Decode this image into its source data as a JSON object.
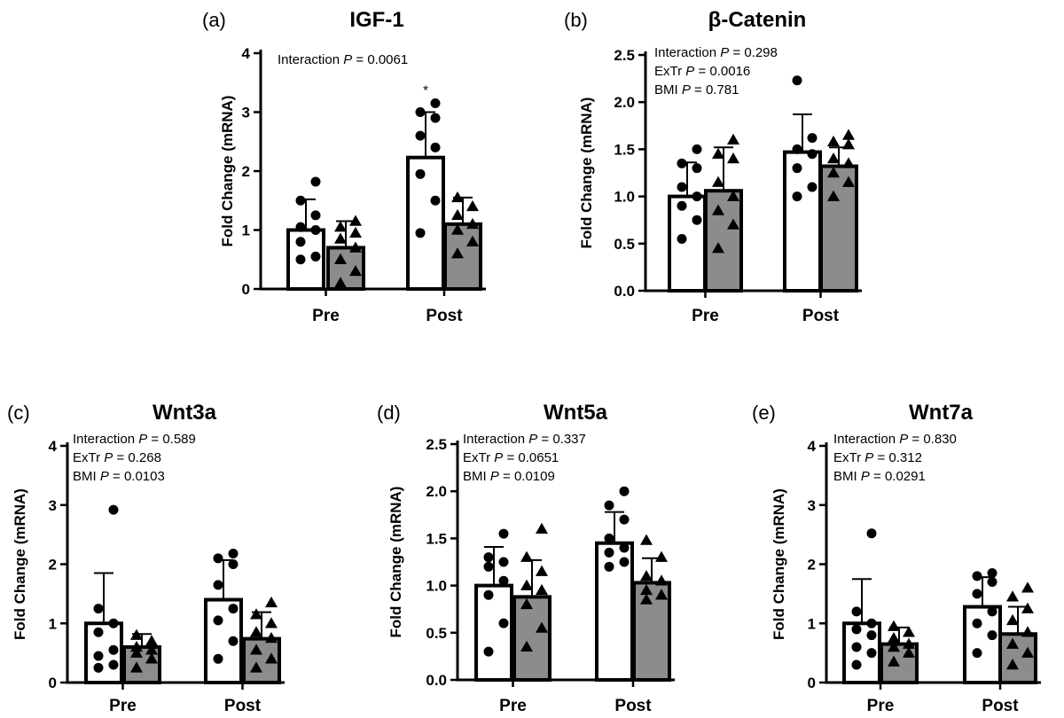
{
  "chart_data": [
    {
      "type": "bar",
      "letter": "(a)",
      "title": "IGF-1",
      "ylabel": "Fold Change (mRNA)",
      "ylim": [
        0,
        4
      ],
      "yticks": [
        "0",
        "1",
        "2",
        "3",
        "4"
      ],
      "categories": [
        "Pre",
        "Post"
      ],
      "annotations": [
        {
          "label": "Interaction ",
          "p_symbol": "P",
          "value": " = 0.0061"
        }
      ],
      "significance": [
        {
          "category": "Post",
          "series": 0,
          "label": "*"
        }
      ],
      "series": [
        {
          "fill": "#ffffff",
          "marker": "circle",
          "values": [
            1.0,
            2.23
          ],
          "errors": [
            0.52,
            0.77
          ],
          "points": [
            [
              0.5,
              0.55,
              0.8,
              1.0,
              1.05,
              1.25,
              1.5,
              1.82
            ],
            [
              0.95,
              1.5,
              1.95,
              2.4,
              2.6,
              2.9,
              3.0,
              3.15
            ]
          ]
        },
        {
          "fill": "#8c8c8c",
          "marker": "triangle",
          "values": [
            0.7,
            1.1
          ],
          "errors": [
            0.45,
            0.45
          ],
          "points": [
            [
              0.1,
              0.3,
              0.5,
              0.7,
              0.85,
              0.95,
              1.05,
              1.15
            ],
            [
              0.6,
              0.8,
              1.0,
              1.1,
              1.25,
              1.4,
              1.55
            ]
          ]
        }
      ]
    },
    {
      "type": "bar",
      "letter": "(b)",
      "title": "β-Catenin",
      "ylabel": "Fold Change (mRNA)",
      "ylim": [
        0,
        2.5
      ],
      "yticks": [
        "0.0",
        "0.5",
        "1.0",
        "1.5",
        "2.0",
        "2.5"
      ],
      "categories": [
        "Pre",
        "Post"
      ],
      "annotations": [
        {
          "label": "Interaction ",
          "p_symbol": "P",
          "value": " = 0.298"
        },
        {
          "label": "ExTr ",
          "p_symbol": "P",
          "value": " = 0.0016"
        },
        {
          "label": "BMI ",
          "p_symbol": "P",
          "value": " = 0.781"
        }
      ],
      "significance": [],
      "series": [
        {
          "fill": "#ffffff",
          "marker": "circle",
          "values": [
            1.0,
            1.47
          ],
          "errors": [
            0.36,
            0.4
          ],
          "points": [
            [
              0.55,
              0.75,
              0.9,
              1.0,
              1.1,
              1.3,
              1.35,
              1.5
            ],
            [
              1.0,
              1.1,
              1.3,
              1.45,
              1.5,
              1.62,
              2.23
            ]
          ]
        },
        {
          "fill": "#8c8c8c",
          "marker": "triangle",
          "values": [
            1.06,
            1.32
          ],
          "errors": [
            0.46,
            0.2
          ],
          "points": [
            [
              0.45,
              0.7,
              0.85,
              1.0,
              1.15,
              1.4,
              1.45,
              1.6
            ],
            [
              1.0,
              1.15,
              1.25,
              1.35,
              1.4,
              1.55,
              1.58,
              1.65
            ]
          ]
        }
      ]
    },
    {
      "type": "bar",
      "letter": "(c)",
      "title": "Wnt3a",
      "ylabel": "Fold Change (mRNA)",
      "ylim": [
        0,
        4
      ],
      "yticks": [
        "0",
        "1",
        "2",
        "3",
        "4"
      ],
      "categories": [
        "Pre",
        "Post"
      ],
      "annotations": [
        {
          "label": "Interaction ",
          "p_symbol": "P",
          "value": " = 0.589"
        },
        {
          "label": "ExTr ",
          "p_symbol": "P",
          "value": " = 0.268"
        },
        {
          "label": "BMI ",
          "p_symbol": "P",
          "value": " = 0.0103"
        }
      ],
      "significance": [],
      "series": [
        {
          "fill": "#ffffff",
          "marker": "circle",
          "values": [
            1.0,
            1.4
          ],
          "errors": [
            0.85,
            0.67
          ],
          "points": [
            [
              0.25,
              0.3,
              0.45,
              0.55,
              0.85,
              1.0,
              1.25,
              2.92
            ],
            [
              0.4,
              0.7,
              1.05,
              1.25,
              1.65,
              2.0,
              2.1,
              2.18
            ]
          ]
        },
        {
          "fill": "#8c8c8c",
          "marker": "triangle",
          "values": [
            0.6,
            0.74
          ],
          "errors": [
            0.22,
            0.45
          ],
          "points": [
            [
              0.25,
              0.4,
              0.5,
              0.55,
              0.6,
              0.7,
              0.8
            ],
            [
              0.25,
              0.4,
              0.55,
              0.75,
              0.85,
              1.0,
              1.15,
              1.35
            ]
          ]
        }
      ]
    },
    {
      "type": "bar",
      "letter": "(d)",
      "title": "Wnt5a",
      "ylabel": "Fold Change (mRNA)",
      "ylim": [
        0,
        2.5
      ],
      "yticks": [
        "0.0",
        "0.5",
        "1.0",
        "1.5",
        "2.0",
        "2.5"
      ],
      "categories": [
        "Pre",
        "Post"
      ],
      "annotations": [
        {
          "label": "Interaction ",
          "p_symbol": "P",
          "value": " = 0.337"
        },
        {
          "label": "ExTr ",
          "p_symbol": "P",
          "value": " = 0.0651"
        },
        {
          "label": "BMI ",
          "p_symbol": "P",
          "value": " = 0.0109"
        }
      ],
      "significance": [],
      "series": [
        {
          "fill": "#ffffff",
          "marker": "circle",
          "values": [
            1.0,
            1.45
          ],
          "errors": [
            0.41,
            0.33
          ],
          "points": [
            [
              0.3,
              0.6,
              0.9,
              1.05,
              1.2,
              1.25,
              1.3,
              1.55
            ],
            [
              1.2,
              1.25,
              1.35,
              1.4,
              1.5,
              1.7,
              1.85,
              2.0
            ]
          ]
        },
        {
          "fill": "#8c8c8c",
          "marker": "triangle",
          "values": [
            0.88,
            1.03
          ],
          "errors": [
            0.39,
            0.26
          ],
          "points": [
            [
              0.35,
              0.55,
              0.8,
              0.95,
              1.0,
              1.15,
              1.3,
              1.6
            ],
            [
              0.85,
              0.9,
              0.95,
              1.05,
              1.1,
              1.3,
              1.48
            ]
          ]
        }
      ]
    },
    {
      "type": "bar",
      "letter": "(e)",
      "title": "Wnt7a",
      "ylabel": "Fold Change (mRNA)",
      "ylim": [
        0,
        4
      ],
      "yticks": [
        "0",
        "1",
        "2",
        "3",
        "4"
      ],
      "categories": [
        "Pre",
        "Post"
      ],
      "annotations": [
        {
          "label": "Interaction ",
          "p_symbol": "P",
          "value": " = 0.830"
        },
        {
          "label": "ExTr ",
          "p_symbol": "P",
          "value": " = 0.312"
        },
        {
          "label": "BMI ",
          "p_symbol": "P",
          "value": " = 0.0291"
        }
      ],
      "significance": [],
      "series": [
        {
          "fill": "#ffffff",
          "marker": "circle",
          "values": [
            1.0,
            1.28
          ],
          "errors": [
            0.75,
            0.5
          ],
          "points": [
            [
              0.3,
              0.5,
              0.6,
              0.8,
              0.9,
              1.0,
              1.2,
              2.52
            ],
            [
              0.5,
              0.8,
              1.0,
              1.2,
              1.5,
              1.7,
              1.8,
              1.85
            ]
          ]
        },
        {
          "fill": "#8c8c8c",
          "marker": "triangle",
          "values": [
            0.65,
            0.82
          ],
          "errors": [
            0.28,
            0.46
          ],
          "points": [
            [
              0.35,
              0.5,
              0.6,
              0.65,
              0.75,
              0.85,
              0.95
            ],
            [
              0.3,
              0.5,
              0.65,
              0.85,
              1.05,
              1.25,
              1.45,
              1.6
            ]
          ]
        }
      ]
    }
  ]
}
